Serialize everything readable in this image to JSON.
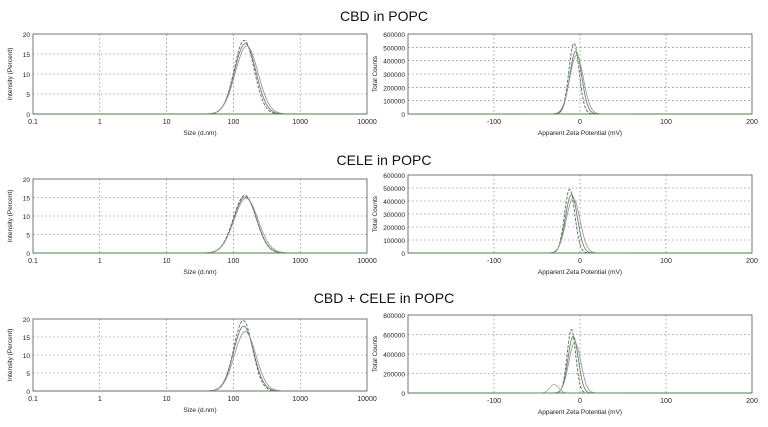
{
  "panels": [
    {
      "title": "CBD in POPC"
    },
    {
      "title": "CELE in POPC"
    },
    {
      "title": "CBD + CELE in POPC"
    }
  ],
  "chart_data": [
    {
      "type": "line",
      "group": "CBD in POPC",
      "xlabel": "Size (d.nm)",
      "ylabel": "Intensity (Percent)",
      "xscale": "log",
      "xlim": [
        0.1,
        10000
      ],
      "ylim": [
        0,
        20
      ],
      "xticks": [
        "0.1",
        "1",
        "10",
        "100",
        "1000",
        "10000"
      ],
      "yticks": [
        "0",
        "5",
        "10",
        "15",
        "20"
      ],
      "grid": true,
      "series": [
        {
          "color": "#7a7a7a",
          "peak_x": 150,
          "peak_y": 17.6,
          "width": 0.16
        },
        {
          "color": "#4a7a4a",
          "peak_x": 145,
          "peak_y": 18.4,
          "width": 0.15
        },
        {
          "color": "#9a9a9a",
          "peak_x": 158,
          "peak_y": 17.0,
          "width": 0.17
        }
      ]
    },
    {
      "type": "line",
      "group": "CBD in POPC",
      "xlabel": "Apparent Zeta Potential (mV)",
      "ylabel": "Total Counts",
      "xlim": [
        -200,
        200
      ],
      "ylim": [
        0,
        600000
      ],
      "xticks": [
        "-100",
        "0",
        "100",
        "200"
      ],
      "yticks": [
        "0",
        "100000",
        "200000",
        "300000",
        "400000",
        "500000",
        "600000"
      ],
      "grid": true,
      "series": [
        {
          "color": "#7a7a7a",
          "peak_x": -5,
          "peak_y": 470000,
          "width": 7
        },
        {
          "color": "#3f7a3f",
          "peak_x": -7,
          "peak_y": 530000,
          "width": 6
        },
        {
          "color": "#9a9a9a",
          "peak_x": -4,
          "peak_y": 440000,
          "width": 8
        }
      ]
    },
    {
      "type": "line",
      "group": "CELE in POPC",
      "xlabel": "Size (d.nm)",
      "ylabel": "Intensity (Percent)",
      "xscale": "log",
      "xlim": [
        0.1,
        10000
      ],
      "ylim": [
        0,
        20
      ],
      "xticks": [
        "0.1",
        "1",
        "10",
        "100",
        "1000",
        "10000"
      ],
      "yticks": [
        "0",
        "5",
        "10",
        "15",
        "20"
      ],
      "grid": true,
      "series": [
        {
          "color": "#7a7a7a",
          "peak_x": 150,
          "peak_y": 15.2,
          "width": 0.17
        },
        {
          "color": "#4a7a4a",
          "peak_x": 148,
          "peak_y": 15.6,
          "width": 0.17
        },
        {
          "color": "#9a9a9a",
          "peak_x": 155,
          "peak_y": 14.8,
          "width": 0.18
        }
      ]
    },
    {
      "type": "line",
      "group": "CELE in POPC",
      "xlabel": "Apparent Zeta Potential (mV)",
      "ylabel": "Total Counts",
      "xlim": [
        -200,
        200
      ],
      "ylim": [
        0,
        600000
      ],
      "xticks": [
        "-100",
        "0",
        "100",
        "200"
      ],
      "yticks": [
        "0",
        "100000",
        "200000",
        "300000",
        "400000",
        "500000",
        "600000"
      ],
      "grid": true,
      "series": [
        {
          "color": "#7a7a7a",
          "peak_x": -10,
          "peak_y": 450000,
          "width": 7
        },
        {
          "color": "#3f7a3f",
          "peak_x": -12,
          "peak_y": 490000,
          "width": 6
        },
        {
          "color": "#9a9a9a",
          "peak_x": -8,
          "peak_y": 420000,
          "width": 8
        }
      ]
    },
    {
      "type": "line",
      "group": "CBD + CELE in POPC",
      "xlabel": "Size (d.nm)",
      "ylabel": "Intensity (Percent)",
      "xscale": "log",
      "xlim": [
        0.1,
        10000
      ],
      "ylim": [
        0,
        20
      ],
      "xticks": [
        "0.1",
        "1",
        "10",
        "100",
        "1000",
        "10000"
      ],
      "yticks": [
        "0",
        "5",
        "10",
        "15",
        "20"
      ],
      "grid": true,
      "series": [
        {
          "color": "#7a7a7a",
          "peak_x": 142,
          "peak_y": 18.0,
          "width": 0.15
        },
        {
          "color": "#4a7a4a",
          "peak_x": 140,
          "peak_y": 19.6,
          "width": 0.14
        },
        {
          "color": "#9a9a9a",
          "peak_x": 150,
          "peak_y": 16.5,
          "width": 0.16
        }
      ]
    },
    {
      "type": "line",
      "group": "CBD + CELE in POPC",
      "xlabel": "Apparent Zeta Potential (mV)",
      "ylabel": "Total Counts",
      "xlim": [
        -200,
        200
      ],
      "ylim": [
        0,
        800000
      ],
      "xticks": [
        "-100",
        "0",
        "100",
        "200"
      ],
      "yticks": [
        "0",
        "200000",
        "400000",
        "600000",
        "800000"
      ],
      "grid": true,
      "series": [
        {
          "color": "#7a7a7a",
          "peak_x": -8,
          "peak_y": 580000,
          "width": 6
        },
        {
          "color": "#3f7a3f",
          "peak_x": -10,
          "peak_y": 650000,
          "width": 5
        },
        {
          "color": "#9a9a9a",
          "peak_x": -6,
          "peak_y": 520000,
          "width": 7
        },
        {
          "color": "#b0b0b0",
          "peak_x": -30,
          "peak_y": 90000,
          "width": 5
        }
      ]
    }
  ]
}
